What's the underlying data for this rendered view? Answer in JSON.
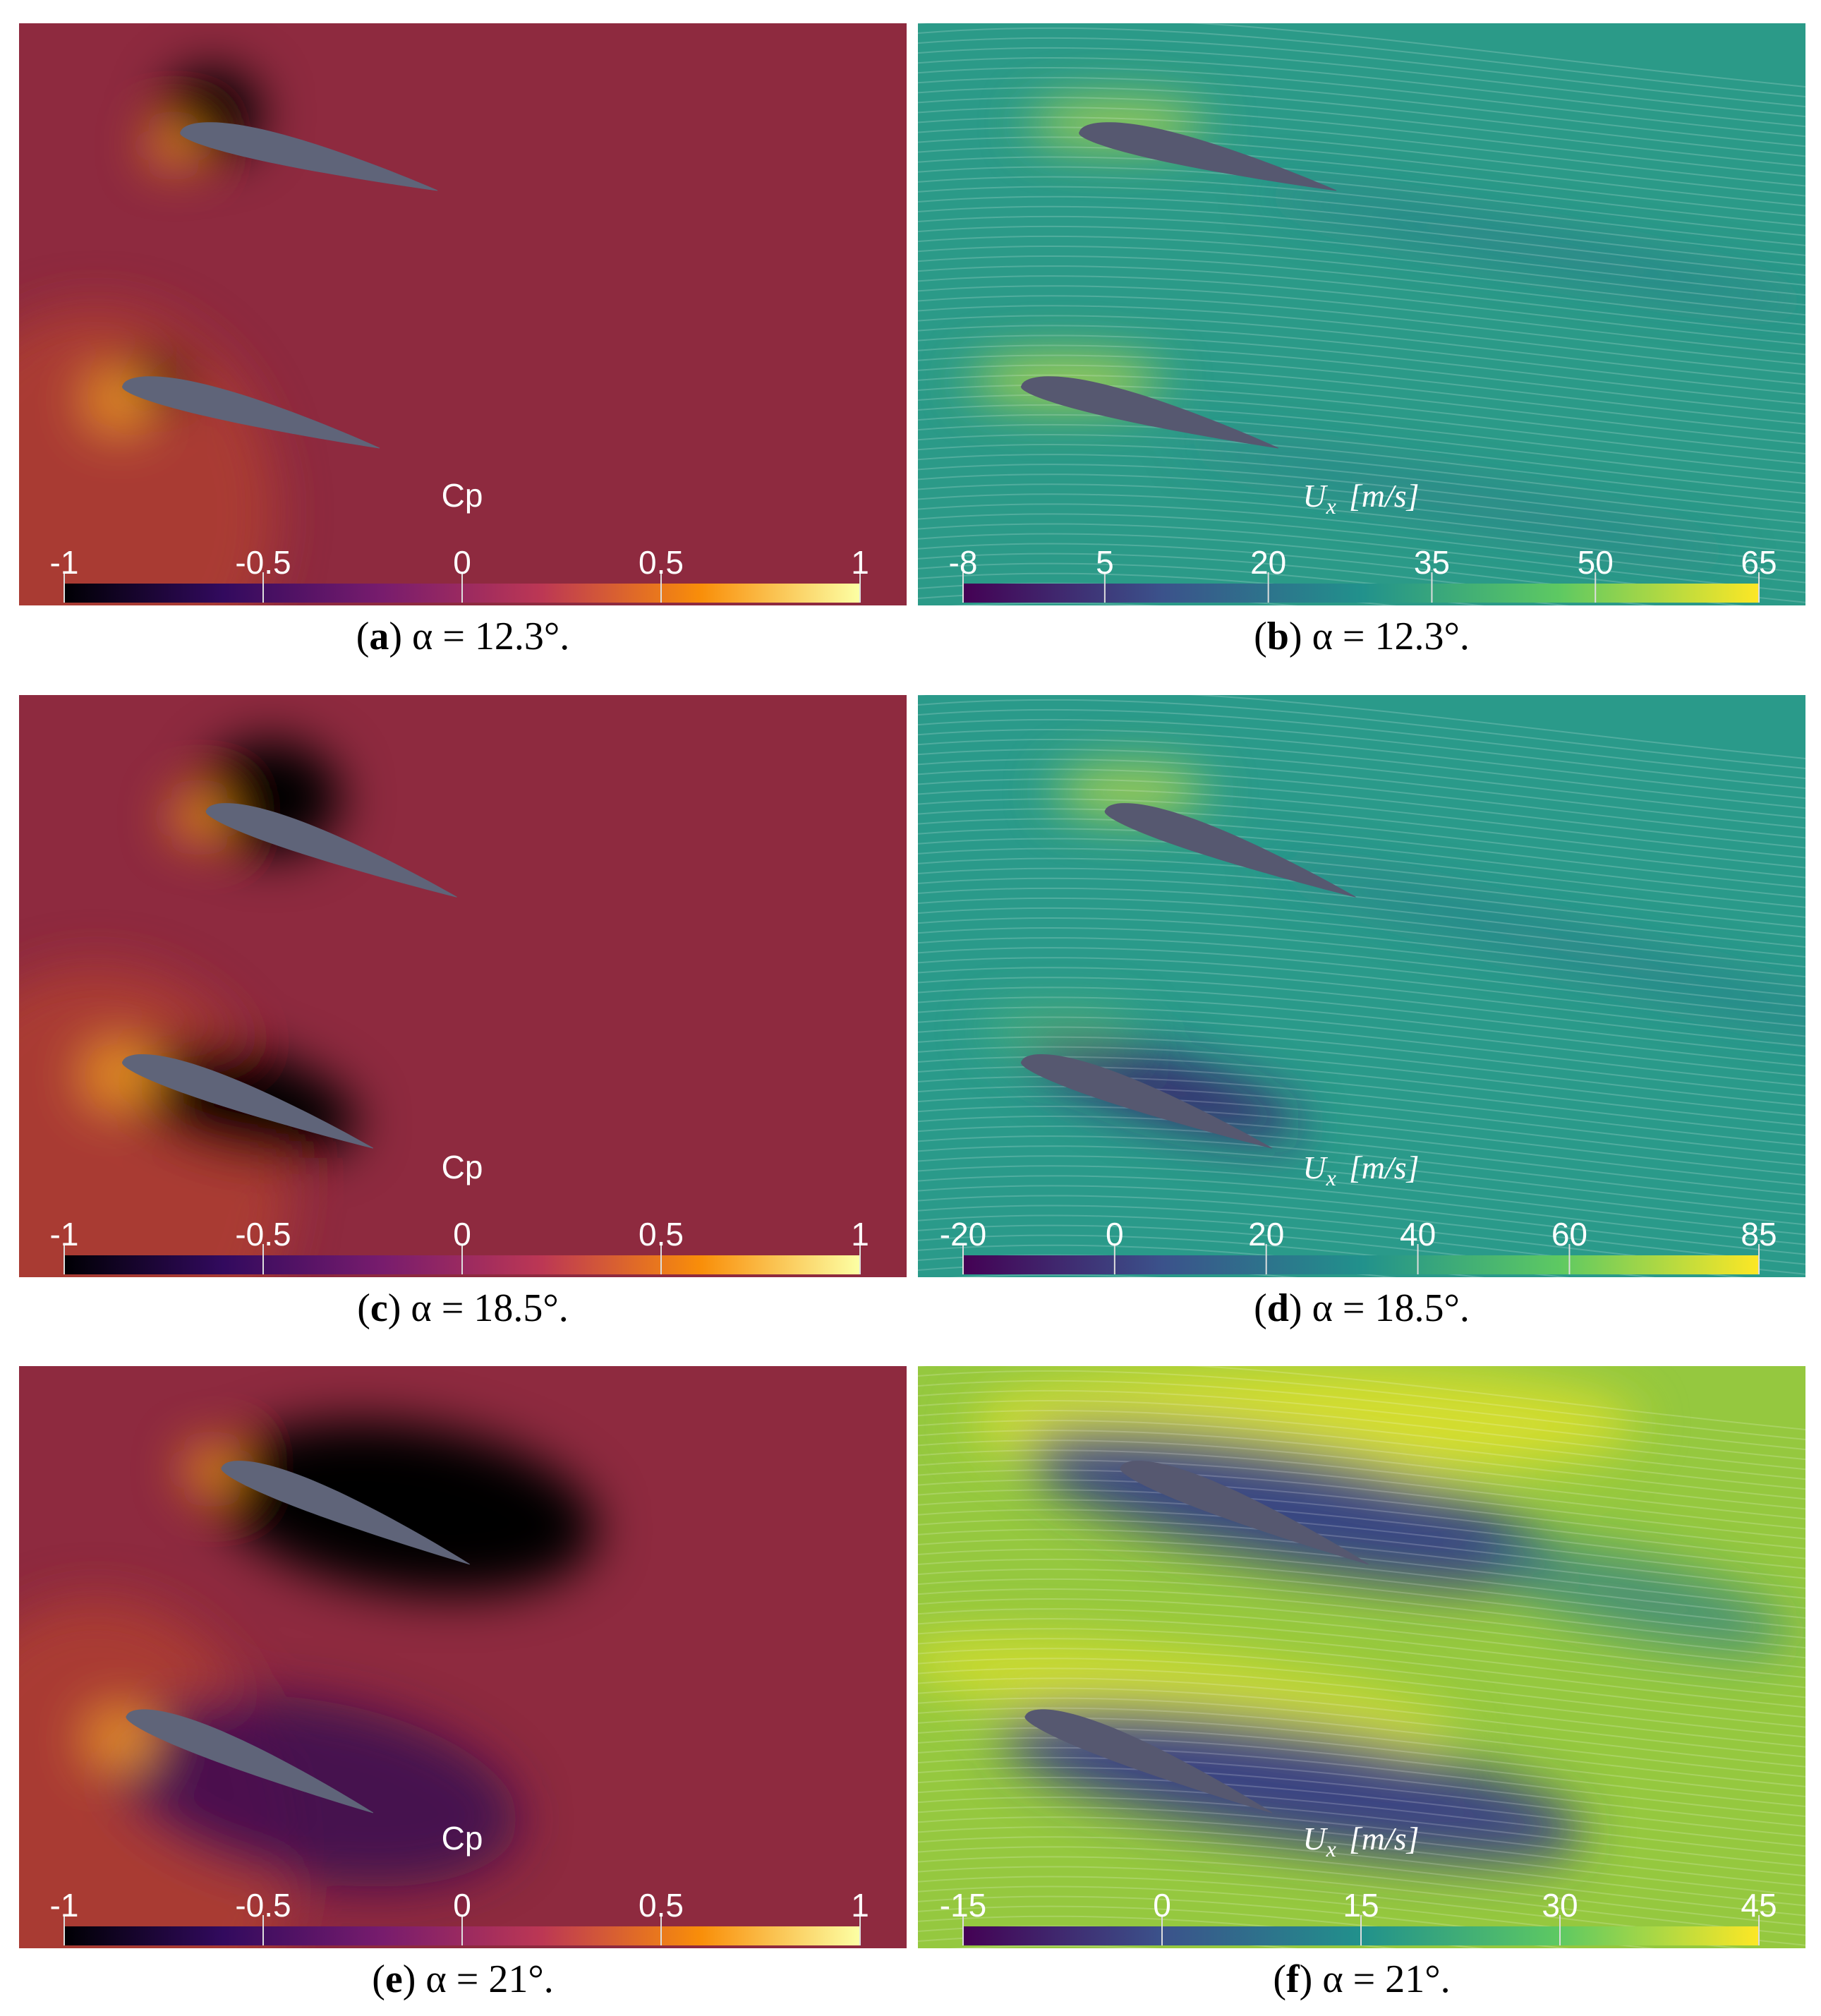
{
  "panels": [
    {
      "colormap": "inferno",
      "colorbar": {
        "title": {
          "text": "Cp"
        },
        "range": [
          -1,
          1
        ],
        "ticks": [
          -1,
          -0.5,
          0,
          0.5,
          1
        ]
      },
      "caption": [
        {
          "text": "("
        },
        {
          "text": "a",
          "bold": true
        },
        {
          "text": ") α = 12.3°."
        }
      ]
    },
    {
      "colormap": "viridis",
      "colorbar": {
        "title": {
          "symbol": "U",
          "subscript": "x",
          "unit": "[m/s]"
        },
        "range": [
          -8,
          65
        ],
        "ticks": [
          -8,
          5,
          20,
          35,
          50,
          65
        ]
      },
      "caption": [
        {
          "text": "("
        },
        {
          "text": "b",
          "bold": true
        },
        {
          "text": ") α = 12.3°."
        }
      ]
    },
    {
      "colormap": "inferno",
      "colorbar": {
        "title": {
          "text": "Cp"
        },
        "range": [
          -1,
          1
        ],
        "ticks": [
          -1,
          -0.5,
          0,
          0.5,
          1
        ]
      },
      "caption": [
        {
          "text": "("
        },
        {
          "text": "c",
          "bold": true
        },
        {
          "text": ") α = 18.5°."
        }
      ]
    },
    {
      "colormap": "viridis",
      "colorbar": {
        "title": {
          "symbol": "U",
          "subscript": "x",
          "unit": "[m/s]"
        },
        "range": [
          -20,
          85
        ],
        "ticks": [
          -20,
          0,
          20,
          40,
          60,
          85
        ]
      },
      "caption": [
        {
          "text": "("
        },
        {
          "text": "d",
          "bold": true
        },
        {
          "text": ") α = 18.5°."
        }
      ]
    },
    {
      "colormap": "inferno",
      "colorbar": {
        "title": {
          "text": "Cp"
        },
        "range": [
          -1,
          1
        ],
        "ticks": [
          -1,
          -0.5,
          0,
          0.5,
          1
        ]
      },
      "caption": [
        {
          "text": "("
        },
        {
          "text": "e",
          "bold": true
        },
        {
          "text": ") α = 21°."
        }
      ]
    },
    {
      "colormap": "viridis",
      "colorbar": {
        "title": {
          "symbol": "U",
          "subscript": "x",
          "unit": "[m/s]"
        },
        "range": [
          -15,
          45
        ],
        "ticks": [
          -15,
          0,
          15,
          30,
          45
        ]
      },
      "caption": [
        {
          "text": "("
        },
        {
          "text": "f",
          "bold": true
        },
        {
          "text": ") α = 21°."
        }
      ]
    }
  ]
}
